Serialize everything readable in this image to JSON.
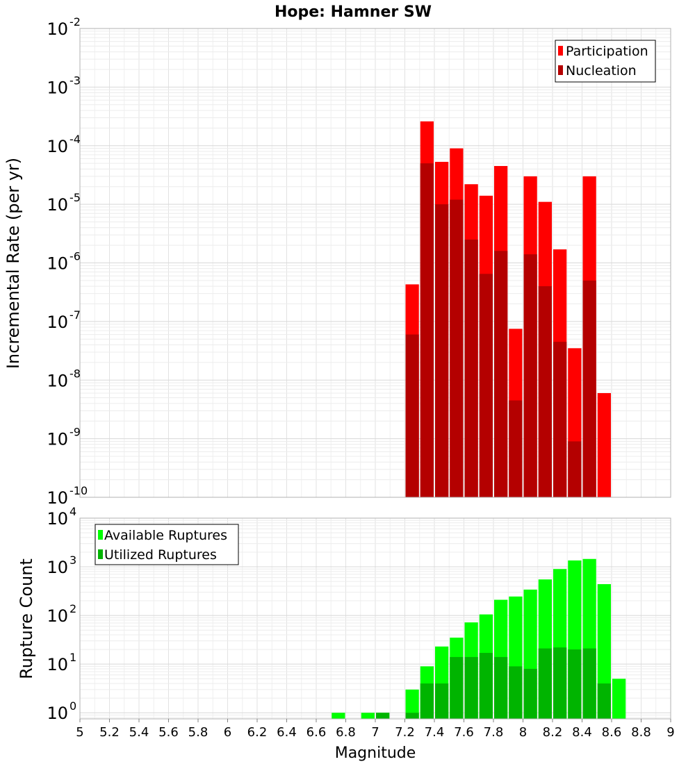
{
  "chart_data": [
    {
      "type": "bar",
      "title": "Hope: Hamner SW",
      "ylabel": "Incremental Rate (per yr)",
      "xlabel": "",
      "yscale": "log",
      "ylim": [
        1e-10,
        0.01
      ],
      "xlim": [
        5,
        9
      ],
      "grid": true,
      "legend_position": "top-right",
      "y_tick_labels": [
        {
          "base": "10",
          "exp": "-10"
        },
        {
          "base": "10",
          "exp": "-9"
        },
        {
          "base": "10",
          "exp": "-8"
        },
        {
          "base": "10",
          "exp": "-7"
        },
        {
          "base": "10",
          "exp": "-6"
        },
        {
          "base": "10",
          "exp": "-5"
        },
        {
          "base": "10",
          "exp": "-4"
        },
        {
          "base": "10",
          "exp": "-3"
        },
        {
          "base": "10",
          "exp": "-2"
        }
      ],
      "x": [
        7.25,
        7.35,
        7.45,
        7.55,
        7.65,
        7.75,
        7.85,
        7.95,
        8.05,
        8.15,
        8.25,
        8.35,
        8.45,
        8.55
      ],
      "series": [
        {
          "name": "Participation",
          "color": "#ff0000",
          "values": [
            4.3e-07,
            0.00026,
            5.3e-05,
            9e-05,
            2.2e-05,
            1.4e-05,
            4.5e-05,
            7.5e-08,
            3e-05,
            1.1e-05,
            1.7e-06,
            3.5e-08,
            3e-05,
            6e-09
          ]
        },
        {
          "name": "Nucleation",
          "color": "#b40000",
          "values": [
            6e-08,
            5e-05,
            1e-05,
            1.2e-05,
            2.5e-06,
            6.5e-07,
            1.6e-06,
            4.5e-09,
            1.4e-06,
            4e-07,
            4.5e-08,
            9e-10,
            5e-07,
            null
          ]
        }
      ]
    },
    {
      "type": "bar",
      "title": "",
      "ylabel": "Rupture Count",
      "xlabel": "Magnitude",
      "yscale": "log",
      "ylim": [
        0.75,
        10000
      ],
      "xlim": [
        5,
        9
      ],
      "grid": true,
      "legend_position": "top-left",
      "y_tick_labels": [
        {
          "base": "10",
          "exp": "0"
        },
        {
          "base": "10",
          "exp": "1"
        },
        {
          "base": "10",
          "exp": "2"
        },
        {
          "base": "10",
          "exp": "3"
        },
        {
          "base": "10",
          "exp": "4"
        }
      ],
      "x_tick_labels": [
        "5",
        "5.2",
        "5.4",
        "5.6",
        "5.8",
        "6",
        "6.2",
        "6.4",
        "6.6",
        "6.8",
        "7",
        "7.2",
        "7.4",
        "7.6",
        "7.8",
        "8",
        "8.2",
        "8.4",
        "8.6",
        "8.8",
        "9"
      ],
      "x": [
        6.75,
        6.95,
        7.05,
        7.25,
        7.35,
        7.45,
        7.55,
        7.65,
        7.75,
        7.85,
        7.95,
        8.05,
        8.15,
        8.25,
        8.35,
        8.45,
        8.55,
        8.65
      ],
      "series": [
        {
          "name": "Available Ruptures",
          "color": "#00ff00",
          "values": [
            1,
            1,
            1,
            3,
            9,
            23,
            35,
            72,
            105,
            210,
            245,
            340,
            550,
            900,
            1350,
            1450,
            440,
            5
          ]
        },
        {
          "name": "Utilized Ruptures",
          "color": "#00b400",
          "values": [
            null,
            null,
            1,
            1,
            4,
            4,
            14,
            14,
            17,
            14,
            9,
            8,
            21,
            22,
            20,
            21,
            4,
            null
          ]
        }
      ]
    }
  ]
}
